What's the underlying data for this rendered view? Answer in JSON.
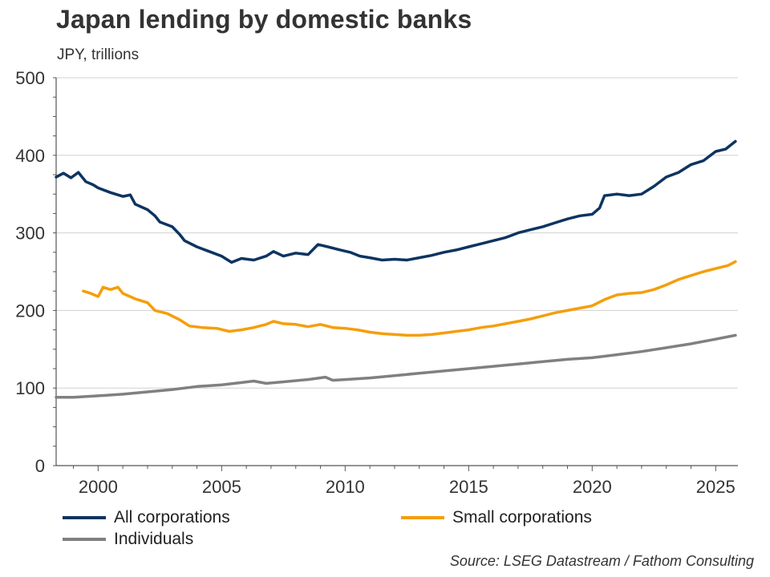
{
  "chart_data": {
    "type": "line",
    "title": "Japan lending by domestic banks",
    "subtitle": "JPY, trillions",
    "xlabel": "",
    "ylabel": "",
    "xlim": [
      1998.3,
      2025.9
    ],
    "ylim": [
      0,
      500
    ],
    "y_ticks": [
      0,
      100,
      200,
      300,
      400,
      500
    ],
    "x_ticks": [
      2000,
      2005,
      2010,
      2015,
      2020,
      2025
    ],
    "grid": "horizontal",
    "legend_position": "bottom",
    "series": [
      {
        "name": "All corporations",
        "color": "#0d3461",
        "points": [
          [
            1998.3,
            372
          ],
          [
            1998.6,
            377
          ],
          [
            1998.9,
            371
          ],
          [
            1999.2,
            378
          ],
          [
            1999.5,
            366
          ],
          [
            1999.8,
            362
          ],
          [
            2000.0,
            358
          ],
          [
            2000.5,
            352
          ],
          [
            2001.0,
            347
          ],
          [
            2001.3,
            349
          ],
          [
            2001.5,
            337
          ],
          [
            2002.0,
            330
          ],
          [
            2002.3,
            322
          ],
          [
            2002.5,
            314
          ],
          [
            2003.0,
            308
          ],
          [
            2003.3,
            298
          ],
          [
            2003.5,
            290
          ],
          [
            2004.0,
            282
          ],
          [
            2004.5,
            276
          ],
          [
            2005.0,
            270
          ],
          [
            2005.4,
            262
          ],
          [
            2005.8,
            267
          ],
          [
            2006.3,
            265
          ],
          [
            2006.8,
            270
          ],
          [
            2007.1,
            276
          ],
          [
            2007.5,
            270
          ],
          [
            2008.0,
            274
          ],
          [
            2008.5,
            272
          ],
          [
            2008.9,
            285
          ],
          [
            2009.3,
            282
          ],
          [
            2009.8,
            278
          ],
          [
            2010.2,
            275
          ],
          [
            2010.6,
            270
          ],
          [
            2011.0,
            268
          ],
          [
            2011.5,
            265
          ],
          [
            2012.0,
            266
          ],
          [
            2012.5,
            265
          ],
          [
            2013.0,
            268
          ],
          [
            2013.5,
            271
          ],
          [
            2014.0,
            275
          ],
          [
            2014.5,
            278
          ],
          [
            2015.0,
            282
          ],
          [
            2015.5,
            286
          ],
          [
            2016.0,
            290
          ],
          [
            2016.5,
            294
          ],
          [
            2017.0,
            300
          ],
          [
            2017.5,
            304
          ],
          [
            2018.0,
            308
          ],
          [
            2018.5,
            313
          ],
          [
            2019.0,
            318
          ],
          [
            2019.5,
            322
          ],
          [
            2020.0,
            324
          ],
          [
            2020.3,
            332
          ],
          [
            2020.5,
            348
          ],
          [
            2021.0,
            350
          ],
          [
            2021.5,
            348
          ],
          [
            2022.0,
            350
          ],
          [
            2022.5,
            360
          ],
          [
            2023.0,
            372
          ],
          [
            2023.5,
            378
          ],
          [
            2024.0,
            388
          ],
          [
            2024.5,
            393
          ],
          [
            2025.0,
            405
          ],
          [
            2025.4,
            408
          ],
          [
            2025.8,
            418
          ]
        ]
      },
      {
        "name": "Small corporations",
        "color": "#f59e0b",
        "points": [
          [
            1999.4,
            225
          ],
          [
            1999.7,
            222
          ],
          [
            2000.0,
            218
          ],
          [
            2000.2,
            230
          ],
          [
            2000.5,
            227
          ],
          [
            2000.8,
            230
          ],
          [
            2001.0,
            222
          ],
          [
            2001.5,
            215
          ],
          [
            2002.0,
            210
          ],
          [
            2002.3,
            200
          ],
          [
            2002.8,
            196
          ],
          [
            2003.3,
            188
          ],
          [
            2003.7,
            180
          ],
          [
            2004.2,
            178
          ],
          [
            2004.8,
            177
          ],
          [
            2005.3,
            173
          ],
          [
            2005.8,
            175
          ],
          [
            2006.3,
            178
          ],
          [
            2006.8,
            182
          ],
          [
            2007.1,
            186
          ],
          [
            2007.5,
            183
          ],
          [
            2008.0,
            182
          ],
          [
            2008.5,
            179
          ],
          [
            2009.0,
            182
          ],
          [
            2009.5,
            178
          ],
          [
            2010.0,
            177
          ],
          [
            2010.5,
            175
          ],
          [
            2011.0,
            172
          ],
          [
            2011.5,
            170
          ],
          [
            2012.0,
            169
          ],
          [
            2012.5,
            168
          ],
          [
            2013.0,
            168
          ],
          [
            2013.5,
            169
          ],
          [
            2014.0,
            171
          ],
          [
            2014.5,
            173
          ],
          [
            2015.0,
            175
          ],
          [
            2015.5,
            178
          ],
          [
            2016.0,
            180
          ],
          [
            2016.5,
            183
          ],
          [
            2017.0,
            186
          ],
          [
            2017.5,
            189
          ],
          [
            2018.0,
            193
          ],
          [
            2018.5,
            197
          ],
          [
            2019.0,
            200
          ],
          [
            2019.5,
            203
          ],
          [
            2020.0,
            206
          ],
          [
            2020.5,
            214
          ],
          [
            2021.0,
            220
          ],
          [
            2021.5,
            222
          ],
          [
            2022.0,
            223
          ],
          [
            2022.5,
            227
          ],
          [
            2023.0,
            233
          ],
          [
            2023.5,
            240
          ],
          [
            2024.0,
            245
          ],
          [
            2024.5,
            250
          ],
          [
            2025.0,
            254
          ],
          [
            2025.5,
            258
          ],
          [
            2025.8,
            263
          ]
        ]
      },
      {
        "name": "Individuals",
        "color": "#808080",
        "points": [
          [
            1998.3,
            88
          ],
          [
            1999.0,
            88
          ],
          [
            2000.0,
            90
          ],
          [
            2001.0,
            92
          ],
          [
            2002.0,
            95
          ],
          [
            2003.0,
            98
          ],
          [
            2004.0,
            102
          ],
          [
            2005.0,
            104
          ],
          [
            2005.8,
            107
          ],
          [
            2006.3,
            109
          ],
          [
            2006.8,
            106
          ],
          [
            2007.5,
            108
          ],
          [
            2008.5,
            111
          ],
          [
            2009.2,
            114
          ],
          [
            2009.5,
            110
          ],
          [
            2010.0,
            111
          ],
          [
            2011.0,
            113
          ],
          [
            2012.0,
            116
          ],
          [
            2013.0,
            119
          ],
          [
            2014.0,
            122
          ],
          [
            2015.0,
            125
          ],
          [
            2016.0,
            128
          ],
          [
            2017.0,
            131
          ],
          [
            2018.0,
            134
          ],
          [
            2019.0,
            137
          ],
          [
            2020.0,
            139
          ],
          [
            2021.0,
            143
          ],
          [
            2022.0,
            147
          ],
          [
            2023.0,
            152
          ],
          [
            2024.0,
            157
          ],
          [
            2025.0,
            163
          ],
          [
            2025.8,
            168
          ]
        ]
      }
    ]
  },
  "source": "Source: LSEG Datastream / Fathom Consulting"
}
